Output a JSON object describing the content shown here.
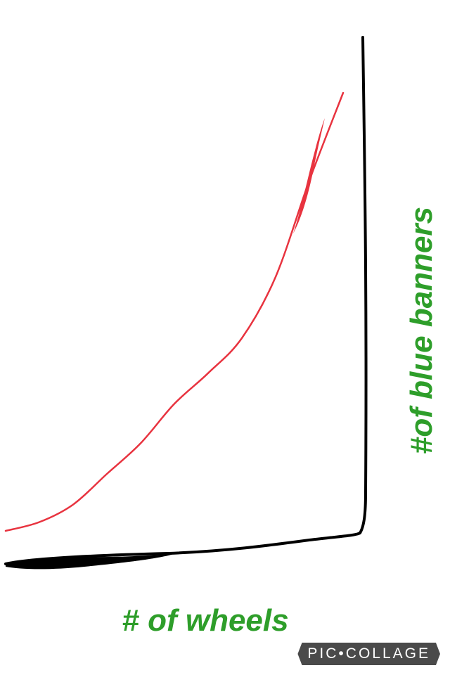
{
  "chart_data": {
    "type": "line",
    "title": "",
    "xlabel": "# of wheels",
    "ylabel": "#of blue banners",
    "grid": false,
    "legend": "none",
    "series": [
      {
        "color": "#e8333f",
        "x": [
          0,
          10,
          20,
          30,
          40,
          50,
          60,
          70,
          80,
          90,
          100
        ],
        "y": [
          0,
          2,
          6,
          13,
          20,
          29,
          36,
          44,
          58,
          80,
          100
        ]
      }
    ]
  },
  "colors": {
    "line": "#e8333f",
    "axis": "#000000",
    "label": "#2e9e2a",
    "watermark_bg": "#4a4a4a"
  },
  "watermark": "PIC•COLLAGE"
}
